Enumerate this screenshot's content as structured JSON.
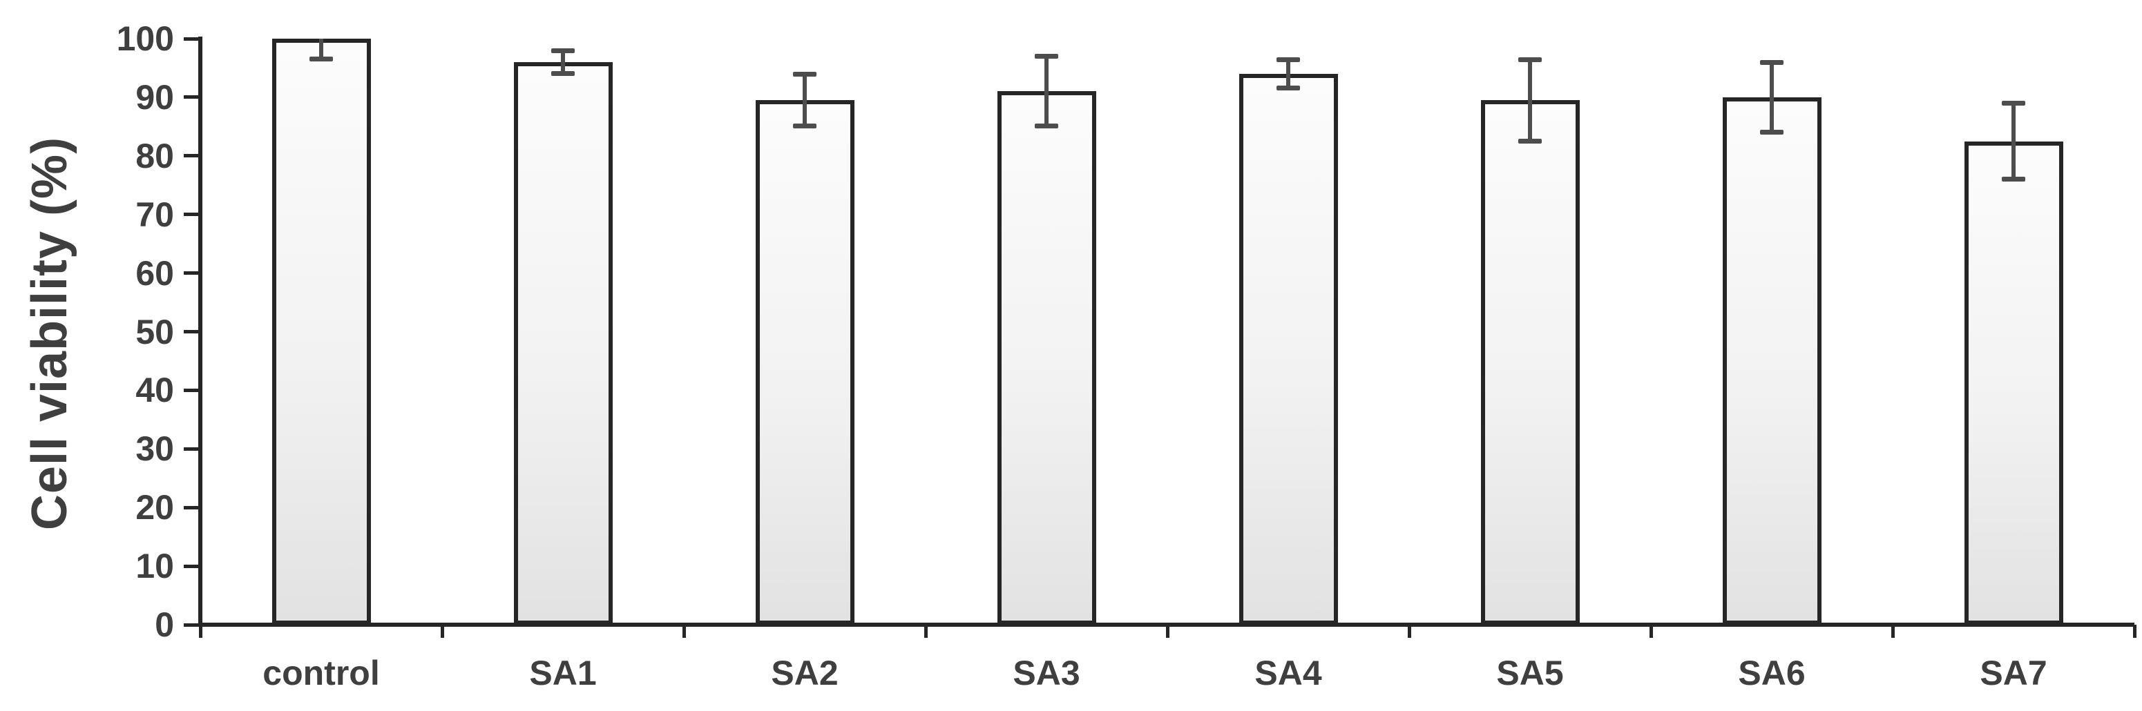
{
  "chart_data": {
    "type": "bar",
    "title": "",
    "xlabel": "",
    "ylabel": "Cell viability (%)",
    "categories": [
      "control",
      "SA1",
      "SA2",
      "SA3",
      "SA4",
      "SA5",
      "SA6",
      "SA7"
    ],
    "values": [
      100,
      96,
      89.5,
      91,
      94,
      89.5,
      90,
      82.5
    ],
    "errors": [
      3.5,
      2,
      4.5,
      6,
      2.5,
      7,
      6,
      6.5
    ],
    "error_style": "symmetric, upper whisker of control clipped at axis top",
    "ylim": [
      0,
      100
    ],
    "yticks": [
      0,
      10,
      20,
      30,
      40,
      50,
      60,
      70,
      80,
      90,
      100
    ],
    "grid": false,
    "legend": "none",
    "colors": {
      "bar_fill_top": "#fcfcfc",
      "bar_fill_bottom": "#e2e2e2",
      "bar_border": "#262626",
      "axis": "#262626",
      "error_bar": "#4d4d4d",
      "text": "#3f3f3f",
      "background": "#ffffff"
    }
  }
}
